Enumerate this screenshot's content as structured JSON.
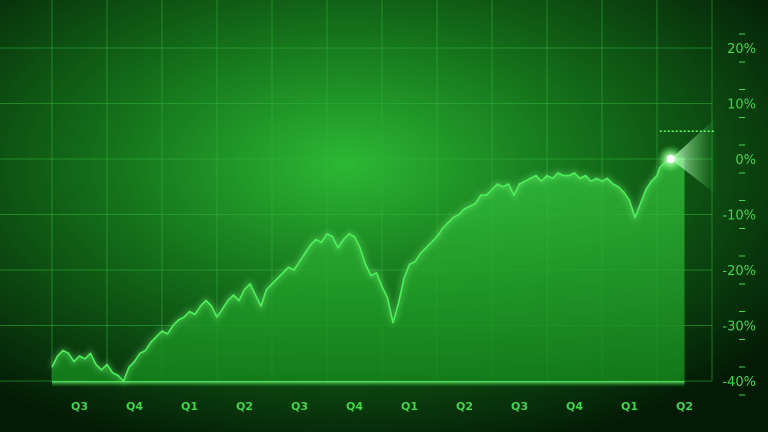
{
  "chart_data": {
    "type": "area",
    "title": "",
    "xlabel": "",
    "ylabel": "",
    "x": [
      0.0,
      0.1,
      0.2,
      0.3,
      0.4,
      0.5,
      0.6,
      0.7,
      0.8,
      0.9,
      1.0,
      1.1,
      1.2,
      1.3,
      1.4,
      1.5,
      1.6,
      1.7,
      1.8,
      1.9,
      2.0,
      2.1,
      2.2,
      2.3,
      2.4,
      2.5,
      2.6,
      2.7,
      2.8,
      2.9,
      3.0,
      3.1,
      3.2,
      3.3,
      3.4,
      3.5,
      3.6,
      3.7,
      3.8,
      3.9,
      4.0,
      4.1,
      4.2,
      4.3,
      4.4,
      4.5,
      4.6,
      4.7,
      4.8,
      4.9,
      5.0,
      5.1,
      5.2,
      5.3,
      5.4,
      5.5,
      5.6,
      5.7,
      5.8,
      5.9,
      6.0,
      6.1,
      6.2,
      6.3,
      6.4,
      6.5,
      6.6,
      6.7,
      6.8,
      6.9,
      7.0,
      7.1,
      7.2,
      7.3,
      7.4,
      7.5,
      7.6,
      7.7,
      7.8,
      7.9,
      8.0,
      8.1,
      8.2,
      8.3,
      8.4,
      8.5,
      8.6,
      8.7,
      8.8,
      8.9,
      9.0,
      9.1,
      9.2,
      9.3,
      9.4,
      9.5,
      9.6,
      9.7,
      9.8,
      9.9,
      10.0,
      10.1,
      10.2,
      10.3,
      10.4,
      10.5,
      10.6,
      10.7,
      10.8,
      10.9,
      11.0,
      11.05,
      11.15,
      11.25,
      11.3,
      11.4,
      11.5
    ],
    "values": [
      -37.5,
      -35.5,
      -34.5,
      -35.0,
      -36.5,
      -35.5,
      -36.0,
      -35.0,
      -37.0,
      -38.0,
      -37.0,
      -38.5,
      -39.0,
      -40.0,
      -37.5,
      -36.5,
      -35.0,
      -34.5,
      -33.0,
      -32.0,
      -31.0,
      -31.5,
      -30.0,
      -29.0,
      -28.5,
      -27.5,
      -28.0,
      -26.5,
      -25.5,
      -26.5,
      -28.5,
      -27.0,
      -25.5,
      -24.5,
      -25.5,
      -23.5,
      -22.5,
      -24.5,
      -26.5,
      -23.5,
      -22.5,
      -21.5,
      -20.5,
      -19.5,
      -20.0,
      -18.5,
      -17.0,
      -15.5,
      -14.5,
      -15.0,
      -13.5,
      -14.0,
      -16.0,
      -14.5,
      -13.5,
      -14.0,
      -16.0,
      -19.0,
      -21.0,
      -20.5,
      -23.0,
      -25.0,
      -29.5,
      -26.0,
      -21.5,
      -19.0,
      -18.5,
      -17.0,
      -16.0,
      -15.0,
      -14.0,
      -12.5,
      -11.5,
      -10.5,
      -10.0,
      -9.0,
      -8.5,
      -8.0,
      -6.5,
      -6.5,
      -5.5,
      -4.5,
      -5.0,
      -4.5,
      -6.5,
      -4.5,
      -4.0,
      -3.5,
      -3.0,
      -4.0,
      -3.0,
      -3.5,
      -2.5,
      -3.0,
      -3.0,
      -2.5,
      -3.5,
      -3.0,
      -4.0,
      -3.5,
      -4.0,
      -3.5,
      -4.5,
      -5.0,
      -6.0,
      -7.5,
      -10.5,
      -8.0,
      -5.5,
      -4.0,
      -3.0,
      -1.5,
      -0.5,
      0.0,
      0.0,
      0.0,
      0.0
    ],
    "categories": [
      "Q3",
      "Q4",
      "Q1",
      "Q2",
      "Q3",
      "Q4",
      "Q1",
      "Q2",
      "Q3",
      "Q4",
      "Q1",
      "Q2"
    ],
    "yticks": [
      "20%",
      "10%",
      "0%",
      "-10%",
      "-20%",
      "-30%",
      "-40%"
    ],
    "ylim": [
      -40,
      20
    ],
    "target_level": 5,
    "grid": true,
    "colors": {
      "line": "#4df05a",
      "area": "#1fa82a",
      "grid": "#2fb038",
      "background": "#0a3a0c",
      "glow": "#d8ffd8"
    }
  }
}
